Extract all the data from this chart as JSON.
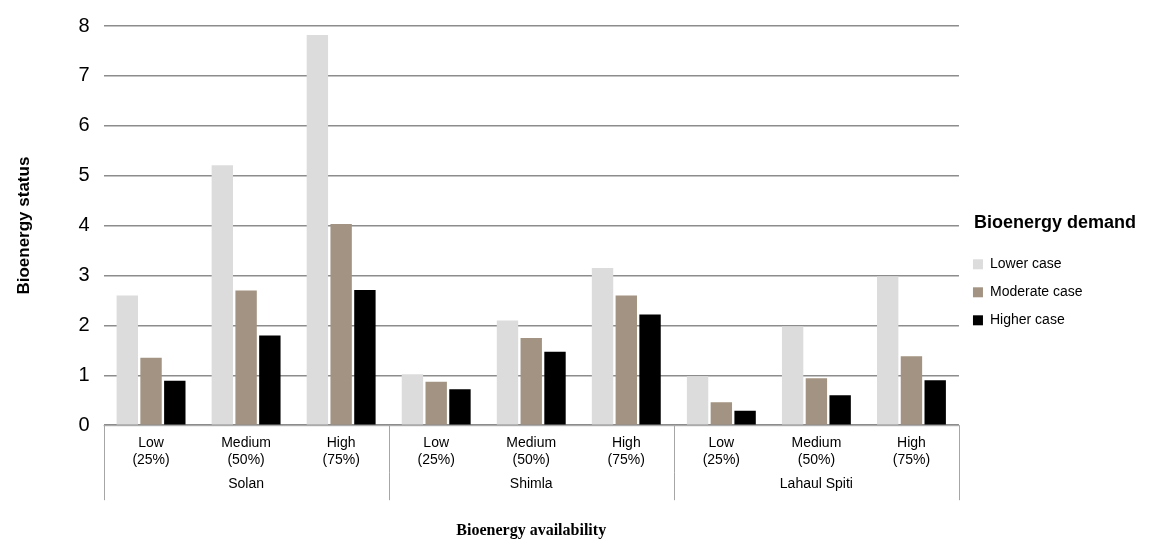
{
  "chart_data": {
    "type": "bar",
    "xlabel": "Bioenergy availability",
    "ylabel": "Bioenergy status",
    "legend_title": "Bioenergy demand",
    "categories": [
      "Low (25%)",
      "Medium (50%)",
      "High (75%)",
      "Low (25%)",
      "Medium (50%)",
      "High (75%)",
      "Low (25%)",
      "Medium (50%)",
      "High (75%)"
    ],
    "annotations": [
      "Solan",
      "Shimla",
      "Lahaul Spiti"
    ],
    "series": [
      {
        "name": "Lower case",
        "color": "#dcdcdc",
        "values": [
          2.6,
          5.21,
          7.82,
          1.02,
          2.1,
          3.15,
          0.98,
          1.98,
          2.98
        ]
      },
      {
        "name": "Moderate case",
        "color": "#a39382",
        "values": [
          1.35,
          2.7,
          4.03,
          0.87,
          1.75,
          2.6,
          0.46,
          0.94,
          1.38
        ]
      },
      {
        "name": "Higher case",
        "color": "#000000",
        "values": [
          0.89,
          1.8,
          2.71,
          0.72,
          1.47,
          2.22,
          0.29,
          0.6,
          0.9
        ]
      }
    ],
    "ylim": [
      0,
      8
    ],
    "yticks": [
      0,
      1,
      2,
      3,
      4,
      5,
      6,
      7,
      8
    ],
    "grid": "y",
    "legend": "right"
  }
}
